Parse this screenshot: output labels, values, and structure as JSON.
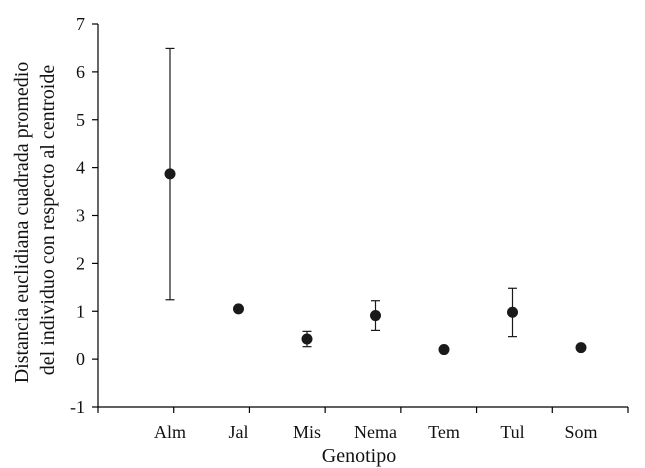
{
  "chart_data": {
    "type": "scatter",
    "xlabel": "Genotipo",
    "ylabel_lines": [
      "Distancia euclidiana cuadrada promedio",
      "del individuo con respecto al centroide"
    ],
    "categories": [
      "Alm",
      "Jal",
      "Mis",
      "Nema",
      "Tem",
      "Tul",
      "Som"
    ],
    "values": [
      3.87,
      1.05,
      0.42,
      0.91,
      0.2,
      0.98,
      0.24
    ],
    "error_low": [
      1.24,
      1.05,
      0.26,
      0.6,
      0.2,
      0.47,
      0.24
    ],
    "error_high": [
      6.49,
      1.05,
      0.58,
      1.22,
      0.2,
      1.48,
      0.24
    ],
    "ylim": [
      -1,
      7
    ],
    "yticks": [
      -1,
      0,
      1,
      2,
      3,
      4,
      5,
      6,
      7
    ],
    "grid": false,
    "marker_color": "#1a1a1a",
    "axis_color": "#000000"
  }
}
